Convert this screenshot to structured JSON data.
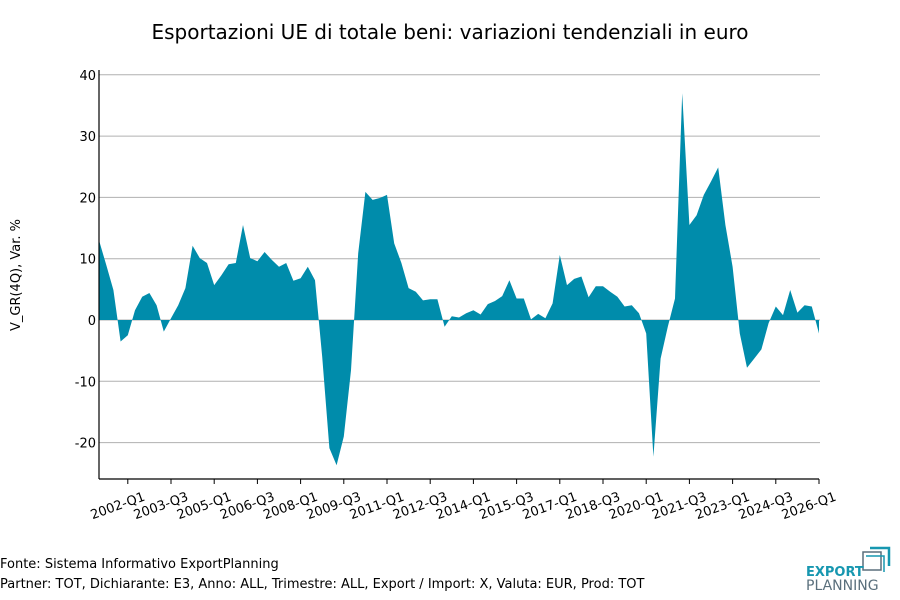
{
  "title": "Esportazioni UE di totale beni: variazioni tendenziali in euro",
  "footer": {
    "source": "Fonte: Sistema Informativo ExportPlanning",
    "filters": "Partner: TOT, Dichiarante: E3, Anno: ALL, Trimestre: ALL, Export / Import: X, Valuta: EUR, Prod: TOT"
  },
  "logo": {
    "line1": "EXPORT",
    "line2": "PLANNING"
  },
  "colors": {
    "area": "#008CAB",
    "grid": "#b0b0b0",
    "logo_teal": "#1797B0",
    "logo_gray": "#5a6f7c"
  },
  "chart_data": {
    "type": "area",
    "title": "Esportazioni UE di totale beni: variazioni tendenziali in euro",
    "ylabel": "V_GR(4Q), Var. %",
    "xlabel": "",
    "ylim": [
      -26,
      41
    ],
    "yticks": [
      -20,
      -10,
      0,
      10,
      20,
      30,
      40
    ],
    "grid": true,
    "x_start": "2001-Q1",
    "x_end": "2026-Q1",
    "xticks": [
      "2002-Q1",
      "2003-Q3",
      "2005-Q1",
      "2006-Q3",
      "2008-Q1",
      "2009-Q3",
      "2011-Q1",
      "2012-Q3",
      "2014-Q1",
      "2015-Q3",
      "2017-Q1",
      "2018-Q3",
      "2020-Q1",
      "2021-Q3",
      "2023-Q1",
      "2024-Q3",
      "2026-Q1"
    ],
    "values": [
      13.0,
      9.0,
      4.9,
      -3.5,
      -2.5,
      1.6,
      3.8,
      4.4,
      2.4,
      -1.9,
      0.3,
      2.4,
      5.2,
      12.1,
      10.1,
      9.3,
      5.7,
      7.3,
      9.1,
      9.3,
      15.5,
      10.1,
      9.6,
      11.1,
      9.8,
      8.7,
      9.3,
      6.4,
      6.8,
      8.7,
      6.5,
      -6.0,
      -20.9,
      -23.7,
      -19.0,
      -8.2,
      10.9,
      20.9,
      19.6,
      19.9,
      20.4,
      12.5,
      9.3,
      5.2,
      4.6,
      3.2,
      3.4,
      3.4,
      -1.1,
      0.6,
      0.4,
      1.1,
      1.6,
      0.9,
      2.6,
      3.1,
      3.9,
      6.5,
      3.5,
      3.5,
      0.1,
      1.0,
      0.3,
      2.7,
      10.6,
      5.7,
      6.7,
      7.1,
      3.7,
      5.5,
      5.5,
      4.6,
      3.8,
      2.2,
      2.4,
      1.1,
      -2.2,
      -22.3,
      -6.3,
      -1.1,
      3.5,
      37.0,
      15.5,
      17.1,
      20.4,
      22.6,
      24.9,
      15.5,
      8.7,
      -2.2,
      -7.8,
      -6.3,
      -4.8,
      -0.5,
      2.2,
      0.8,
      4.9,
      1.2,
      2.4,
      2.2,
      -2.2
    ]
  }
}
